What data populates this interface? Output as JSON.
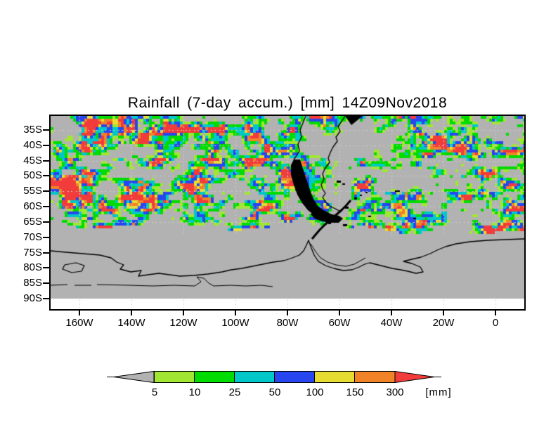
{
  "title": "Rainfall (7-day accum.) [mm] 14Z09Nov2018",
  "axes": {
    "y_tick_labels": [
      "35S",
      "40S",
      "45S",
      "50S",
      "55S",
      "60S",
      "65S",
      "70S",
      "75S",
      "80S",
      "85S",
      "90S"
    ],
    "x_tick_labels": [
      "160W",
      "140W",
      "120W",
      "100W",
      "80W",
      "60W",
      "40W",
      "20W",
      "0"
    ]
  },
  "colorbar": {
    "tick_labels": [
      "5",
      "10",
      "25",
      "50",
      "100",
      "150",
      "300"
    ],
    "unit_label": "[mm]",
    "segment_names": [
      "<5 mm",
      "5-10 mm",
      "10-25 mm",
      "25-50 mm",
      "50-100 mm",
      "100-150 mm",
      "150-300 mm",
      ">300 mm"
    ],
    "segment_colors": [
      "#b2b2b2",
      "#a0e632",
      "#00dc00",
      "#00c8c8",
      "#2846f0",
      "#e6dc32",
      "#f08228",
      "#f23b3b"
    ]
  },
  "map_colors": {
    "background_gray": "#b2b2b2",
    "below_90S_strip": "#ffffff",
    "coastline": "#000000",
    "gridline": "#cfcfc6"
  },
  "chart_data": {
    "type": "heatmap",
    "title": "Rainfall (7-day accum.) [mm] 14Z09Nov2018",
    "variable": "7-day accumulated rainfall",
    "unit": "mm",
    "valid_time": "14Z09Nov2018",
    "x_ticks": [
      "160W",
      "140W",
      "120W",
      "100W",
      "80W",
      "60W",
      "40W",
      "20W",
      "0"
    ],
    "y_ticks": [
      "35S",
      "40S",
      "45S",
      "50S",
      "55S",
      "60S",
      "65S",
      "70S",
      "75S",
      "80S",
      "85S",
      "90S"
    ],
    "color_levels_mm": [
      5,
      10,
      25,
      50,
      100,
      150,
      300
    ],
    "level_colors": [
      "#b2b2b2",
      "#a0e632",
      "#00dc00",
      "#00c8c8",
      "#2846f0",
      "#e6dc32",
      "#f08228",
      "#f23b3b"
    ],
    "grid": "dashed gray graticule every 5 deg lat / 20 deg lon",
    "legend_position": "bottom horizontal colorbar with left (gray, <5) and right (red, >300) arrow ends",
    "no_data_note": "field is solid gray south of ~63S and over land interiors; white strip below 90S",
    "notable_features": [
      "storm-track band of 10-100 mm (green/cyan/blue) spanning 30S-62S across the whole South Pacific and South Atlantic",
      "heavy 150-300+ mm cluster west of southern Chile near 50S 80W (orange/red)",
      "heavy 100-300 mm cluster at far west edge near 45-57S 165-170W",
      "dry gray areas over Patagonia, the Argentine shelf and subtropical highs",
      "Antarctic and South American coastlines drawn as thin black contours, Antarctic Peninsula as black island chain"
    ]
  }
}
